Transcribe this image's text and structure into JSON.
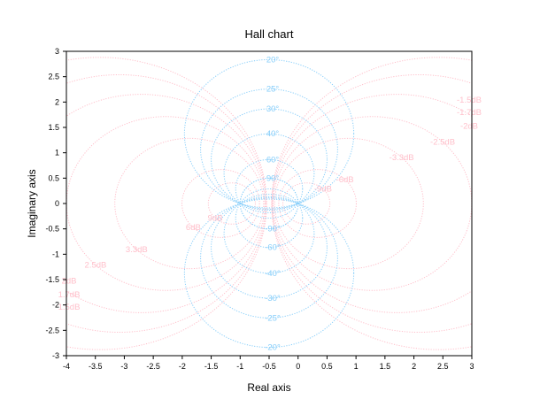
{
  "chart_data": {
    "type": "line",
    "title": "Hall chart",
    "xlabel": "Real axis",
    "ylabel": "Imaginary axis",
    "xlim": [
      -4,
      3
    ],
    "ylim": [
      -3,
      3
    ],
    "x_ticks": [
      "-4",
      "-3.5",
      "-3",
      "-2.5",
      "-2",
      "-1.5",
      "-1",
      "-0.5",
      "0",
      "0.5",
      "1",
      "1.5",
      "2",
      "2.5",
      "3"
    ],
    "y_ticks": [
      "-3",
      "-2.5",
      "-2",
      "-1.5",
      "-1",
      "-0.5",
      "0",
      "0.5",
      "1",
      "1.5",
      "2",
      "2.5",
      "3"
    ],
    "grid": false,
    "series": [
      {
        "color": "#ffc0cb",
        "values_db": [
          -1.5,
          -1.7,
          -2,
          -2.5,
          -3.3,
          -6,
          -9,
          9,
          6,
          3.3,
          2.5,
          2,
          1.7,
          1.5
        ],
        "labels": [
          "-1.5dB",
          "-1.7dB",
          "-2dB",
          "-2.5dB",
          "-3.3dB",
          "-6dB",
          "-9dB",
          "9dB",
          "6dB",
          "3.3dB",
          "2.5dB",
          "2dB",
          "1.7dB",
          "1.5dB"
        ]
      },
      {
        "color": "#87cefa",
        "values_deg": [
          20,
          25,
          30,
          40,
          60,
          90,
          -90,
          -60,
          -40,
          -30,
          -25,
          -20
        ],
        "labels": [
          "20°",
          "25°",
          "30°",
          "40°",
          "60°",
          "90°",
          "-90°",
          "-60°",
          "-40°",
          "-30°",
          "-25°",
          "-20°"
        ]
      }
    ]
  }
}
